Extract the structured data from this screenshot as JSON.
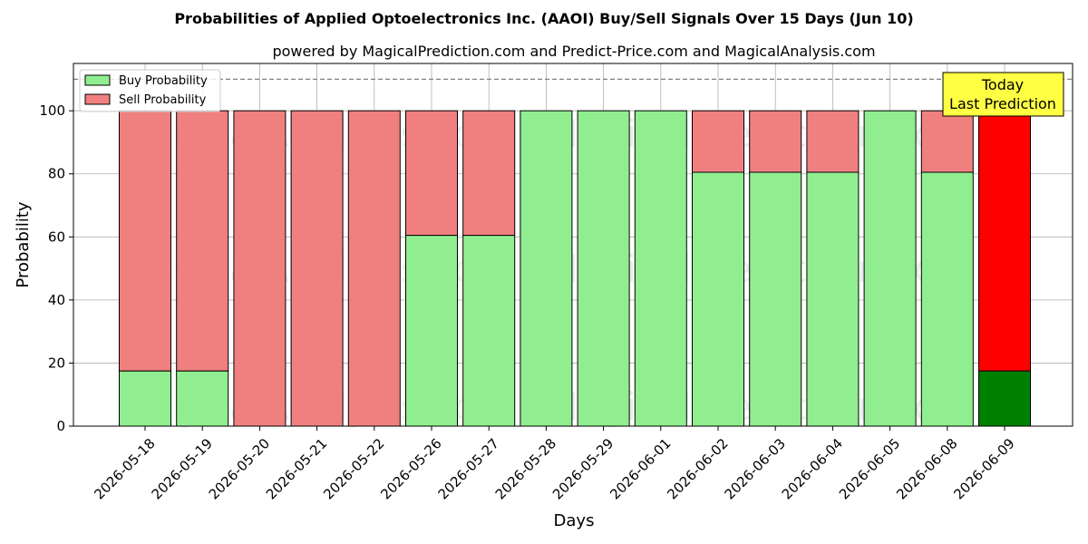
{
  "chart_data": {
    "type": "bar",
    "stacked": true,
    "title": "Probabilities of Applied Optoelectronics Inc. (AAOI) Buy/Sell Signals Over 15 Days (Jun 10)",
    "subtitle": "powered by MagicalPrediction.com and Predict-Price.com and MagicalAnalysis.com",
    "xlabel": "Days",
    "ylabel": "Probability",
    "ylim": [
      0,
      115
    ],
    "yticks": [
      0,
      20,
      40,
      60,
      80,
      100
    ],
    "reference_line": 110,
    "grid": true,
    "legend_placement": "top-left",
    "categories": [
      "2026-05-18",
      "2026-05-19",
      "2026-05-20",
      "2026-05-21",
      "2026-05-22",
      "2026-05-26",
      "2026-05-27",
      "2026-05-28",
      "2026-05-29",
      "2026-06-01",
      "2026-06-02",
      "2026-06-03",
      "2026-06-04",
      "2026-06-05",
      "2026-06-08",
      "2026-06-09"
    ],
    "series": [
      {
        "name": "Buy Probability",
        "color": "#90ee90",
        "values": [
          17.5,
          17.5,
          0,
          0,
          0,
          60.5,
          60.5,
          100,
          100,
          100,
          80.5,
          80.5,
          80.5,
          100,
          80.5,
          17.5
        ]
      },
      {
        "name": "Sell Probability",
        "color": "#f08080",
        "values": [
          82.5,
          82.5,
          100,
          100,
          100,
          39.5,
          39.5,
          0,
          0,
          0,
          19.5,
          19.5,
          19.5,
          0,
          19.5,
          82.5
        ]
      }
    ],
    "highlight": {
      "index": 15,
      "buy_color": "#008000",
      "sell_color": "#ff0000"
    },
    "annotation": {
      "line1": "Today",
      "line2": "Last Prediction",
      "background": "#ffff44"
    },
    "watermarks": [
      "MagicalAnalysis.com",
      "MagicalPrediction.com"
    ]
  }
}
